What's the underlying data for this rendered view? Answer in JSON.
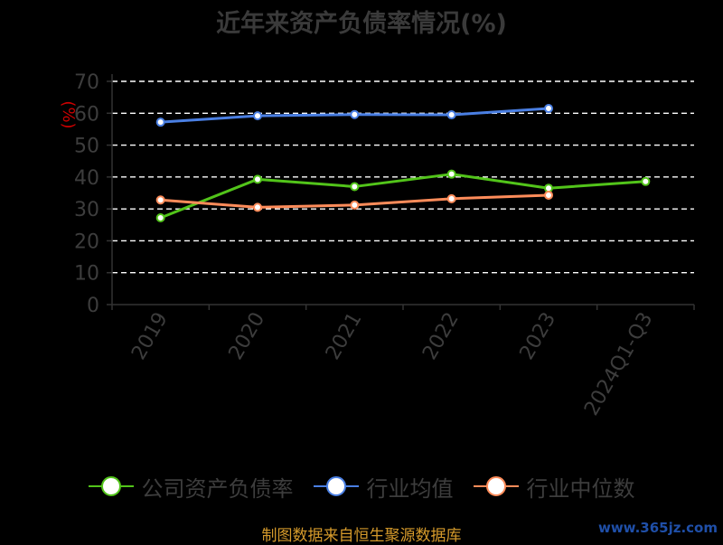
{
  "chart_data": {
    "type": "line",
    "title": "近年来资产负债率情况(%)",
    "ylabel": "(%)",
    "xlabel": "",
    "categories": [
      "2019",
      "2020",
      "2021",
      "2022",
      "2023",
      "2024Q1-Q3"
    ],
    "ylim": [
      0,
      70
    ],
    "yticks": [
      0,
      10,
      20,
      30,
      40,
      50,
      60,
      70
    ],
    "grid": true,
    "legend_position": "bottom",
    "series": [
      {
        "name": "公司资产负债率",
        "color": "#52c41a",
        "values": [
          27.2,
          39.3,
          37.0,
          40.9,
          36.5,
          38.6
        ]
      },
      {
        "name": "行业均值",
        "color": "#4a7fe3",
        "values": [
          57.2,
          59.2,
          59.6,
          59.5,
          61.5,
          null
        ]
      },
      {
        "name": "行业中位数",
        "color": "#ff8c5a",
        "values": [
          32.8,
          30.5,
          31.2,
          33.2,
          34.3,
          null
        ]
      }
    ]
  },
  "source": "制图数据来自恒生聚源数据库",
  "watermark": "www.365jz.com"
}
